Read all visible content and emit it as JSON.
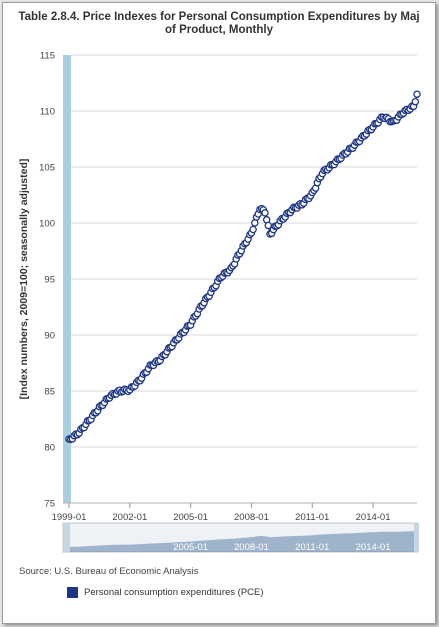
{
  "colors": {
    "series": "#1d3586",
    "axis_band": "#a8cfe0",
    "grid": "#dadada",
    "navigator_fill": "#5f7fa8"
  },
  "chart_data": {
    "type": "line",
    "title_line1": "Table 2.8.4. Price Indexes for Personal Consumption Expenditures by Maj",
    "title_line2": "of Product, Monthly",
    "ylabel": "[Index numbers, 2009=100; seasonally adjusted]",
    "xlabel": "",
    "ylim": [
      75,
      115
    ],
    "yticks": [
      "75",
      "80",
      "85",
      "90",
      "95",
      "100",
      "105",
      "110",
      "115"
    ],
    "xlim": [
      "1999-01",
      "2016-03"
    ],
    "xticks": [
      "1999-01",
      "2002-01",
      "2005-01",
      "2008-01",
      "2011-01",
      "2014-01"
    ],
    "navigator_ticks": [
      "2005-01",
      "2008-01",
      "2011-01",
      "2014-01"
    ],
    "grid": "horizontal",
    "legend_position": "bottom-left",
    "marker": "open circle",
    "series": [
      {
        "name": "Personal consumption expenditures (PCE)",
        "points": [
          [
            "1999-01",
            80.6
          ],
          [
            "1999-07",
            81.3
          ],
          [
            "2000-01",
            82.4
          ],
          [
            "2000-07",
            83.5
          ],
          [
            "2001-01",
            84.5
          ],
          [
            "2001-07",
            85.0
          ],
          [
            "2002-01",
            85.1
          ],
          [
            "2002-07",
            86.0
          ],
          [
            "2003-01",
            87.2
          ],
          [
            "2003-07",
            87.8
          ],
          [
            "2004-01",
            88.9
          ],
          [
            "2004-07",
            90.0
          ],
          [
            "2005-01",
            91.0
          ],
          [
            "2005-07",
            92.5
          ],
          [
            "2006-01",
            93.8
          ],
          [
            "2006-07",
            95.2
          ],
          [
            "2007-01",
            95.9
          ],
          [
            "2007-07",
            97.6
          ],
          [
            "2008-01",
            99.1
          ],
          [
            "2008-06",
            101.3
          ],
          [
            "2008-09",
            101.0
          ],
          [
            "2008-12",
            99.0
          ],
          [
            "2009-03",
            99.6
          ],
          [
            "2009-07",
            100.3
          ],
          [
            "2010-01",
            101.2
          ],
          [
            "2010-07",
            101.7
          ],
          [
            "2011-01",
            102.6
          ],
          [
            "2011-07",
            104.5
          ],
          [
            "2012-01",
            105.2
          ],
          [
            "2012-07",
            106.0
          ],
          [
            "2013-01",
            106.8
          ],
          [
            "2013-07",
            107.7
          ],
          [
            "2014-01",
            108.6
          ],
          [
            "2014-07",
            109.5
          ],
          [
            "2015-01",
            109.0
          ],
          [
            "2015-07",
            109.9
          ],
          [
            "2016-01",
            110.4
          ],
          [
            "2016-03",
            111.5
          ]
        ]
      }
    ]
  },
  "source_text": "Source: U.S. Bureau of Economic Analysis",
  "legend_label": "Personal consumption expenditures (PCE)"
}
